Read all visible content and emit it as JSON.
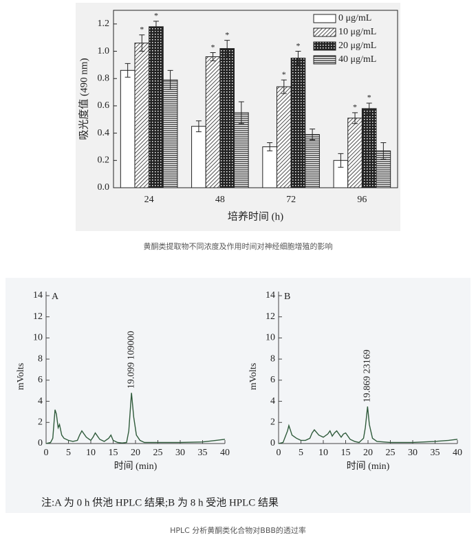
{
  "chart_data": [
    {
      "type": "bar",
      "y_label": "吸光度值 (490 nm)",
      "x_label": "培养时间 (h)",
      "categories": [
        "24",
        "48",
        "72",
        "96"
      ],
      "series": [
        {
          "name": "0 μg/mL",
          "color": "#ffffff",
          "pattern": "none",
          "values": [
            0.86,
            0.45,
            0.3,
            0.2
          ],
          "errors": [
            0.05,
            0.04,
            0.03,
            0.05
          ]
        },
        {
          "name": "10 μg/mL",
          "color": "#222222",
          "pattern": "diagonal",
          "values": [
            1.06,
            0.96,
            0.74,
            0.51
          ],
          "errors": [
            0.06,
            0.03,
            0.05,
            0.04
          ],
          "significance": [
            "*",
            "*",
            "*",
            "*"
          ]
        },
        {
          "name": "20 μg/mL",
          "color": "#222222",
          "pattern": "checker",
          "values": [
            1.18,
            1.02,
            0.95,
            0.58
          ],
          "errors": [
            0.04,
            0.06,
            0.05,
            0.04
          ],
          "significance": [
            "*",
            "*",
            "*",
            "*"
          ]
        },
        {
          "name": "40 μg/mL",
          "color": "#222222",
          "pattern": "horizontal",
          "values": [
            0.79,
            0.55,
            0.39,
            0.27
          ],
          "errors": [
            0.07,
            0.08,
            0.04,
            0.06
          ]
        }
      ],
      "ylim": [
        0,
        1.3
      ],
      "yticks": [
        {
          "value": 0,
          "label": "0.0"
        },
        0.2,
        0.4,
        0.6,
        0.8,
        {
          "value": 1,
          "label": "1.0"
        },
        1.2
      ],
      "legend": "upper-right"
    },
    {
      "type": "line",
      "panel_label": "A",
      "y_label": "mVolts",
      "x_label": "时间 (min)",
      "annotation": "19.099 109000",
      "color": "#2e5a3a",
      "x": [
        0,
        1,
        1.5,
        2,
        2.3,
        2.7,
        3,
        3.5,
        4,
        5,
        6,
        7,
        7.5,
        8,
        9,
        10,
        10.5,
        11,
        12,
        13,
        14,
        14.5,
        15,
        16,
        17,
        18,
        18.5,
        19.1,
        19.6,
        20.2,
        21,
        22,
        25,
        30,
        35,
        38,
        40
      ],
      "values": [
        0,
        0.1,
        0.5,
        3.2,
        2.8,
        1.5,
        1.8,
        0.8,
        0.5,
        0.3,
        0.2,
        0.3,
        0.8,
        1.2,
        0.6,
        0.3,
        0.6,
        1.0,
        0.4,
        0.2,
        0.5,
        0.8,
        0.3,
        0.1,
        0.05,
        0.1,
        1.2,
        4.8,
        2.5,
        0.8,
        0.3,
        0.1,
        0.1,
        0.1,
        0.15,
        0.3,
        0.4
      ],
      "xlim": [
        0,
        40
      ],
      "xticks": [
        0,
        5,
        10,
        15,
        20,
        25,
        30,
        35,
        40
      ],
      "ylim": [
        0,
        14
      ],
      "yticks": [
        0,
        2,
        4,
        6,
        8,
        10,
        12,
        14
      ]
    },
    {
      "type": "line",
      "panel_label": "B",
      "y_label": "mVolts",
      "x_label": "时间 (min)",
      "annotation": "19.869 23169",
      "color": "#2e5a3a",
      "x": [
        0,
        1,
        2,
        2.3,
        2.7,
        3,
        4,
        5,
        6,
        7,
        7.5,
        8,
        9,
        10,
        11,
        11.5,
        12,
        12.5,
        13,
        14,
        14.5,
        15,
        16,
        17,
        18,
        19,
        19.4,
        19.9,
        20.3,
        21,
        22,
        25,
        30,
        35,
        38,
        40
      ],
      "values": [
        0,
        0.1,
        1.2,
        1.7,
        1.2,
        0.8,
        0.5,
        0.3,
        0.3,
        0.5,
        1.0,
        1.3,
        0.8,
        0.6,
        0.9,
        1.2,
        0.7,
        1.0,
        1.2,
        0.6,
        0.9,
        1.0,
        0.4,
        0.2,
        0.1,
        0.5,
        1.5,
        3.5,
        1.8,
        0.5,
        0.2,
        0.1,
        0.1,
        0.2,
        0.3,
        0.4
      ],
      "xlim": [
        0,
        40
      ],
      "xticks": [
        0,
        5,
        10,
        15,
        20,
        25,
        30,
        35,
        40
      ],
      "ylim": [
        0,
        14
      ],
      "yticks": [
        0,
        2,
        4,
        6,
        8,
        10,
        12,
        14
      ]
    }
  ],
  "caption_1": "黄酮类提取物不同浓度及作用时间对神经细胞增殖的影响",
  "figure_note": "注:A 为 0 h 供池 HPLC 结果;B 为 8 h 受池 HPLC 结果",
  "caption_2": "HPLC 分析黄酮类化合物对BBB的透过率"
}
